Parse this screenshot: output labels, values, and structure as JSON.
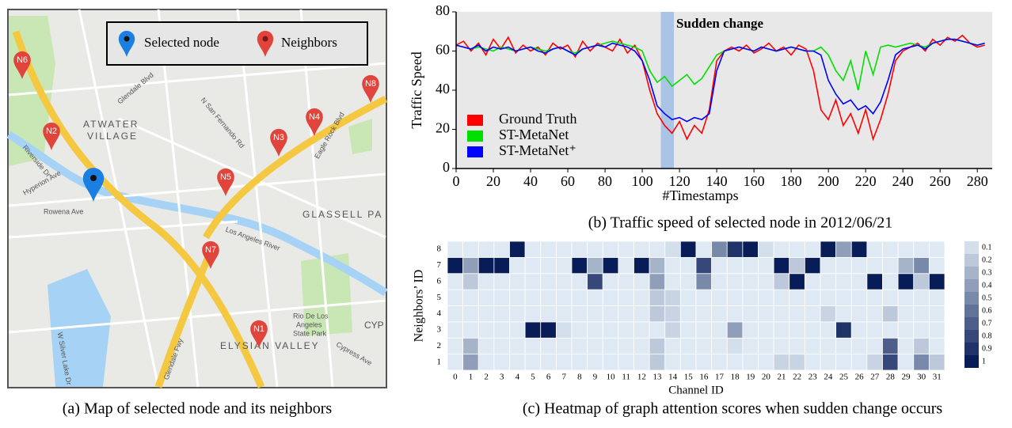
{
  "map": {
    "legend": [
      "Selected node",
      "Neighbors"
    ],
    "nodes": [
      "N1",
      "N2",
      "N3",
      "N4",
      "N5",
      "N6",
      "N7",
      "N8"
    ],
    "places": [
      "ATWATER",
      "VILLAGE",
      "GLASSELL PA",
      "ELYSIAN VALLEY",
      "Rio De Los",
      "Angeles",
      "State Park",
      "Los Angeles River",
      "Riverside Dr",
      "Glendale Blvd",
      "Hyperion Ave",
      "Rowena Ave",
      "N San Fernando Rd",
      "Eagle Rock Blvd",
      "Glendale Fwy",
      "W Silver Lake Dr",
      "Cypress Ave",
      "CYP"
    ],
    "caption": "(a) Map of selected node and its neighbors"
  },
  "chart_data": [
    {
      "type": "line",
      "ylabel": "Traffic Speed",
      "xlabel": "#Timestamps",
      "caption": "(b) Traffic speed of selected node in 2012/06/21",
      "annotation": "Sudden change",
      "highlight": [
        110,
        117
      ],
      "highlight_color": "#a9c4e4",
      "background": "#e8e8e8",
      "xlim": [
        0,
        288
      ],
      "xticks": [
        0,
        20,
        40,
        60,
        80,
        100,
        120,
        140,
        160,
        180,
        200,
        220,
        240,
        260,
        280
      ],
      "ylim": [
        0,
        80
      ],
      "yticks": [
        0,
        20,
        40,
        60,
        80
      ],
      "x": [
        0,
        4,
        8,
        12,
        16,
        20,
        24,
        28,
        32,
        36,
        40,
        44,
        48,
        52,
        56,
        60,
        64,
        68,
        72,
        76,
        80,
        84,
        88,
        92,
        96,
        100,
        104,
        108,
        112,
        116,
        120,
        124,
        128,
        132,
        136,
        140,
        144,
        148,
        152,
        156,
        160,
        164,
        168,
        172,
        176,
        180,
        184,
        188,
        192,
        196,
        200,
        204,
        208,
        212,
        216,
        220,
        224,
        228,
        232,
        236,
        240,
        244,
        248,
        252,
        256,
        260,
        264,
        268,
        272,
        276,
        280,
        284
      ],
      "series": [
        {
          "name": "Ground Truth",
          "color": "#ff0000",
          "values": [
            63,
            65,
            60,
            64,
            58,
            66,
            61,
            67,
            59,
            63,
            60,
            62,
            58,
            64,
            61,
            63,
            57,
            65,
            60,
            64,
            62,
            60,
            66,
            59,
            63,
            55,
            40,
            28,
            22,
            18,
            24,
            15,
            22,
            18,
            30,
            55,
            60,
            62,
            60,
            63,
            59,
            61,
            64,
            60,
            62,
            58,
            63,
            61,
            50,
            30,
            25,
            35,
            22,
            28,
            18,
            30,
            15,
            25,
            38,
            55,
            60,
            62,
            64,
            60,
            66,
            63,
            67,
            65,
            68,
            64,
            62,
            63
          ]
        },
        {
          "name": "ST-MetaNet",
          "color": "#00e000",
          "values": [
            63,
            62,
            61,
            62,
            61,
            60,
            62,
            61,
            60,
            61,
            62,
            61,
            60,
            61,
            62,
            60,
            59,
            61,
            62,
            63,
            64,
            65,
            64,
            63,
            62,
            60,
            50,
            44,
            47,
            42,
            45,
            48,
            43,
            46,
            52,
            58,
            60,
            61,
            62,
            61,
            60,
            62,
            61,
            60,
            61,
            62,
            61,
            60,
            60,
            62,
            58,
            50,
            45,
            55,
            40,
            60,
            48,
            62,
            63,
            62,
            63,
            64,
            63,
            62,
            64,
            65,
            66,
            66,
            65,
            64,
            63,
            64
          ]
        },
        {
          "name": "ST-MetaNet⁺",
          "color": "#0000ff",
          "values": [
            63,
            62,
            61,
            63,
            60,
            62,
            61,
            62,
            60,
            61,
            62,
            60,
            59,
            61,
            62,
            60,
            58,
            61,
            62,
            63,
            62,
            64,
            63,
            62,
            60,
            55,
            45,
            32,
            28,
            25,
            26,
            24,
            26,
            25,
            28,
            50,
            60,
            61,
            62,
            61,
            60,
            62,
            61,
            60,
            61,
            62,
            61,
            60,
            60,
            58,
            45,
            38,
            33,
            35,
            30,
            32,
            28,
            34,
            45,
            58,
            61,
            62,
            63,
            61,
            64,
            65,
            66,
            66,
            65,
            64,
            63,
            64
          ]
        }
      ]
    },
    {
      "type": "heatmap",
      "xlabel": "Channel ID",
      "ylabel": "Neighbors’ ID",
      "caption": "(c) Heatmap of graph attention scores when sudden change occurs",
      "colormap": [
        "#eaf4fb",
        "#081d58"
      ],
      "x_categories": [
        0,
        1,
        2,
        3,
        4,
        5,
        6,
        7,
        8,
        9,
        10,
        11,
        12,
        13,
        14,
        15,
        16,
        17,
        18,
        19,
        20,
        21,
        22,
        23,
        24,
        25,
        26,
        27,
        28,
        29,
        30,
        31
      ],
      "y_categories": [
        1,
        2,
        3,
        4,
        5,
        6,
        7,
        8
      ],
      "colorbar_ticks": [
        0.1,
        0.2,
        0.3,
        0.4,
        0.5,
        0.6,
        0.7,
        0.8,
        0.9,
        1
      ],
      "z": [
        [
          0.05,
          0.4,
          0.05,
          0.05,
          0.05,
          0.05,
          0.05,
          0.05,
          0.05,
          0.05,
          0.05,
          0.05,
          0.05,
          0.2,
          0.05,
          0.05,
          0.05,
          0.05,
          0.05,
          0.05,
          0.05,
          0.15,
          0.15,
          0.05,
          0.05,
          0.05,
          0.05,
          0.15,
          0.8,
          0.05,
          0.5,
          0.2
        ],
        [
          0.05,
          0.3,
          0.05,
          0.05,
          0.05,
          0.05,
          0.05,
          0.05,
          0.05,
          0.05,
          0.05,
          0.05,
          0.05,
          0.2,
          0.05,
          0.05,
          0.05,
          0.05,
          0.1,
          0.05,
          0.05,
          0.05,
          0.05,
          0.05,
          0.05,
          0.05,
          0.05,
          0.05,
          0.7,
          0.05,
          0.2,
          0.05
        ],
        [
          0.05,
          0.05,
          0.05,
          0.05,
          0.05,
          1,
          1,
          0.1,
          0.05,
          0.05,
          0.05,
          0.05,
          0.05,
          0.05,
          0.15,
          0.05,
          0.05,
          0.05,
          0.4,
          0.05,
          0.05,
          0.05,
          0.05,
          0.05,
          0.05,
          0.9,
          0.05,
          0.05,
          0.05,
          0.05,
          0.05,
          0.05
        ],
        [
          0.05,
          0.05,
          0.05,
          0.05,
          0.05,
          0.05,
          0.05,
          0.05,
          0.05,
          0.05,
          0.05,
          0.05,
          0.05,
          0.2,
          0.15,
          0.05,
          0.05,
          0.05,
          0.05,
          0.05,
          0.05,
          0.05,
          0.05,
          0.05,
          0.15,
          0.05,
          0.05,
          0.05,
          0.2,
          0.05,
          0.05,
          0.05
        ],
        [
          0.05,
          0.05,
          0.05,
          0.05,
          0.05,
          0.05,
          0.05,
          0.05,
          0.05,
          0.05,
          0.05,
          0.05,
          0.05,
          0.2,
          0.15,
          0.05,
          0.05,
          0.05,
          0.05,
          0.05,
          0.05,
          0.05,
          0.05,
          0.05,
          0.05,
          0.05,
          0.05,
          0.05,
          0.05,
          0.05,
          0.05,
          0.05
        ],
        [
          0.05,
          0.2,
          0.05,
          0.05,
          0.05,
          0.05,
          0.05,
          0.05,
          0.05,
          0.8,
          0.05,
          0.05,
          0.05,
          0.4,
          0.05,
          0.05,
          0.5,
          0.05,
          0.05,
          0.05,
          0.05,
          0.2,
          1,
          0.05,
          0.05,
          0.05,
          0.05,
          1,
          0.05,
          1,
          0.2,
          1
        ],
        [
          1,
          0.4,
          1,
          1,
          0.05,
          0.05,
          0.05,
          0.05,
          1,
          0.3,
          1,
          0.05,
          1,
          0.3,
          0.05,
          0.05,
          0.8,
          0.05,
          0.05,
          0.05,
          0.05,
          1,
          0.2,
          1,
          0.05,
          0.05,
          0.05,
          0.05,
          0.05,
          0.3,
          0.5,
          0.05
        ],
        [
          0.05,
          0.05,
          0.05,
          0.05,
          1,
          0.05,
          0.05,
          0.05,
          0.05,
          0.05,
          0.05,
          0.05,
          0.05,
          0.05,
          0.1,
          1,
          0.05,
          0.5,
          0.9,
          1,
          0.1,
          0.05,
          0.05,
          0.05,
          1,
          0.4,
          1,
          0.05,
          0.05,
          0.05,
          0.05,
          0.05
        ]
      ]
    }
  ]
}
